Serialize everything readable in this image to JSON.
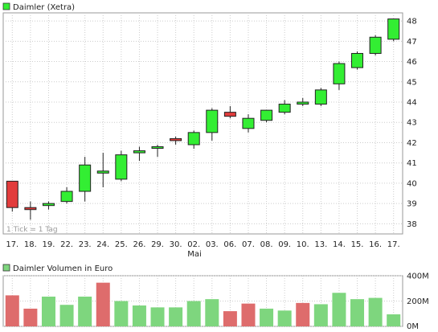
{
  "price_legend": "Daimler (Xetra)",
  "volume_legend": "Daimler Volumen in Euro",
  "tick_note": "1 Tick = 1 Tag",
  "month_label": "Mai",
  "colors": {
    "up": "#33ee33",
    "down": "#e23c3c",
    "vol_up": "#7ed67e",
    "vol_down": "#de6c6c",
    "grid": "#cccccc",
    "border": "#999999"
  },
  "chart_data": [
    {
      "type": "candlestick",
      "title": "Daimler (Xetra)",
      "categories": [
        "17.",
        "18.",
        "19.",
        "22.",
        "23.",
        "24.",
        "25.",
        "26.",
        "29.",
        "30.",
        "02.",
        "03.",
        "06.",
        "07.",
        "08.",
        "09.",
        "10.",
        "13.",
        "14.",
        "15.",
        "16.",
        "17."
      ],
      "ylim": [
        37.5,
        48.4
      ],
      "yticks": [
        38,
        39,
        40,
        41,
        42,
        43,
        44,
        45,
        46,
        47,
        48
      ],
      "grid": true,
      "ohlc": [
        {
          "open": 40.1,
          "high": 40.1,
          "low": 38.6,
          "close": 38.8
        },
        {
          "open": 38.8,
          "high": 39.1,
          "low": 38.2,
          "close": 38.7
        },
        {
          "open": 38.9,
          "high": 39.1,
          "low": 38.7,
          "close": 39.0
        },
        {
          "open": 39.1,
          "high": 39.8,
          "low": 39.0,
          "close": 39.6
        },
        {
          "open": 39.6,
          "high": 41.3,
          "low": 39.1,
          "close": 40.9
        },
        {
          "open": 40.5,
          "high": 41.5,
          "low": 39.8,
          "close": 40.6
        },
        {
          "open": 40.2,
          "high": 41.6,
          "low": 40.1,
          "close": 41.4
        },
        {
          "open": 41.5,
          "high": 41.8,
          "low": 41.1,
          "close": 41.6
        },
        {
          "open": 41.8,
          "high": 41.9,
          "low": 41.3,
          "close": 41.8
        },
        {
          "open": 42.2,
          "high": 42.3,
          "low": 41.9,
          "close": 42.1
        },
        {
          "open": 41.9,
          "high": 42.6,
          "low": 41.7,
          "close": 42.5
        },
        {
          "open": 42.5,
          "high": 43.7,
          "low": 42.1,
          "close": 43.6
        },
        {
          "open": 43.5,
          "high": 43.8,
          "low": 43.2,
          "close": 43.3
        },
        {
          "open": 42.7,
          "high": 43.4,
          "low": 42.5,
          "close": 43.2
        },
        {
          "open": 43.1,
          "high": 43.6,
          "low": 43.0,
          "close": 43.6
        },
        {
          "open": 43.5,
          "high": 44.1,
          "low": 43.4,
          "close": 43.9
        },
        {
          "open": 43.9,
          "high": 44.2,
          "low": 43.8,
          "close": 44.0
        },
        {
          "open": 43.9,
          "high": 44.7,
          "low": 43.8,
          "close": 44.6
        },
        {
          "open": 44.9,
          "high": 46.0,
          "low": 44.6,
          "close": 45.9
        },
        {
          "open": 45.7,
          "high": 46.5,
          "low": 45.6,
          "close": 46.4
        },
        {
          "open": 46.4,
          "high": 47.3,
          "low": 46.3,
          "close": 47.2
        },
        {
          "open": 47.1,
          "high": 48.1,
          "low": 47.0,
          "close": 48.1
        }
      ]
    },
    {
      "type": "bar",
      "title": "Daimler Volumen in Euro",
      "categories": [
        "17.",
        "18.",
        "19.",
        "22.",
        "23.",
        "24.",
        "25.",
        "26.",
        "29.",
        "30.",
        "02.",
        "03.",
        "06.",
        "07.",
        "08.",
        "09.",
        "10.",
        "13.",
        "14.",
        "15.",
        "16.",
        "17."
      ],
      "ylim": [
        0,
        400
      ],
      "yticks": [
        {
          "value": 0,
          "label": "0M"
        },
        {
          "value": 200,
          "label": "200M"
        },
        {
          "value": 400,
          "label": "400M"
        }
      ],
      "values": [
        245,
        140,
        235,
        170,
        235,
        345,
        200,
        165,
        150,
        150,
        200,
        215,
        120,
        180,
        140,
        125,
        185,
        175,
        265,
        215,
        225,
        95
      ],
      "direction": [
        "down",
        "down",
        "up",
        "up",
        "up",
        "down",
        "up",
        "up",
        "up",
        "up",
        "up",
        "up",
        "down",
        "down",
        "up",
        "up",
        "down",
        "up",
        "up",
        "up",
        "up",
        "up"
      ]
    }
  ]
}
